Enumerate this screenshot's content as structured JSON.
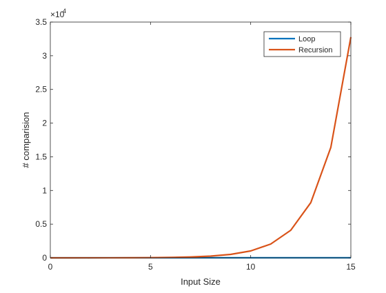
{
  "chart_data": {
    "type": "line",
    "xlabel": "Input Size",
    "ylabel": "# comparision",
    "xlim": [
      0,
      15
    ],
    "ylim": [
      0,
      35000
    ],
    "y_exponent_label": "×10",
    "y_exponent": "4",
    "grid": false,
    "legend_position": "top-right",
    "x_ticks": [
      0,
      5,
      10,
      15
    ],
    "x_tick_labels": [
      "0",
      "5",
      "10",
      "15"
    ],
    "y_ticks": [
      0,
      5000,
      10000,
      15000,
      20000,
      25000,
      30000,
      35000
    ],
    "y_tick_labels": [
      "0",
      "0.5",
      "1",
      "1.5",
      "2",
      "2.5",
      "3",
      "3.5"
    ],
    "series": [
      {
        "name": "Loop",
        "color": "#0072bd",
        "x": [
          0,
          1,
          2,
          3,
          4,
          5,
          6,
          7,
          8,
          9,
          10,
          11,
          12,
          13,
          14,
          15
        ],
        "y": [
          1,
          2,
          3,
          4,
          5,
          6,
          7,
          8,
          9,
          10,
          11,
          12,
          13,
          14,
          15,
          16
        ]
      },
      {
        "name": "Recursion",
        "color": "#d95319",
        "x": [
          0,
          1,
          2,
          3,
          4,
          5,
          6,
          7,
          8,
          9,
          10,
          11,
          12,
          13,
          14,
          15
        ],
        "y": [
          1,
          2,
          4,
          8,
          16,
          32,
          64,
          128,
          256,
          512,
          1024,
          2048,
          4096,
          8192,
          16384,
          32768
        ]
      }
    ]
  }
}
